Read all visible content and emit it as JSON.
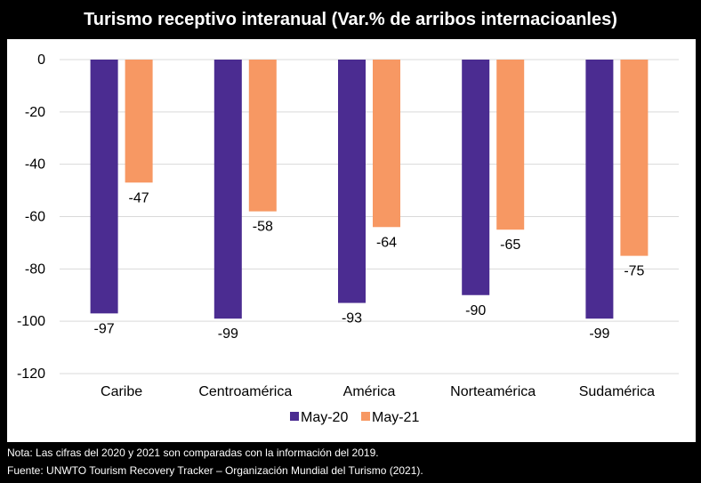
{
  "chart_data": {
    "type": "bar",
    "title": "Turismo receptivo interanual (Var.% de arribos internacioanles)",
    "categories": [
      "Caribe",
      "Centroamérica",
      "América",
      "Norteamérica",
      "Sudamérica"
    ],
    "series": [
      {
        "name": "May-20",
        "color": "#4b2c91",
        "values": [
          -97,
          -99,
          -93,
          -90,
          -99
        ]
      },
      {
        "name": "May-21",
        "color": "#f79863",
        "values": [
          -47,
          -58,
          -64,
          -65,
          -75
        ]
      }
    ],
    "ylim": [
      -120,
      0
    ],
    "yticks": [
      0,
      -20,
      -40,
      -60,
      -80,
      -100,
      -120
    ],
    "grid": true,
    "legend_position": "bottom"
  },
  "notes": {
    "nota": "Nota: Las cifras del 2020 y 2021 son comparadas con la información del 2019.",
    "fuente": "Fuente: UNWTO Tourism Recovery Tracker – Organización Mundial del Turismo (2021)."
  }
}
